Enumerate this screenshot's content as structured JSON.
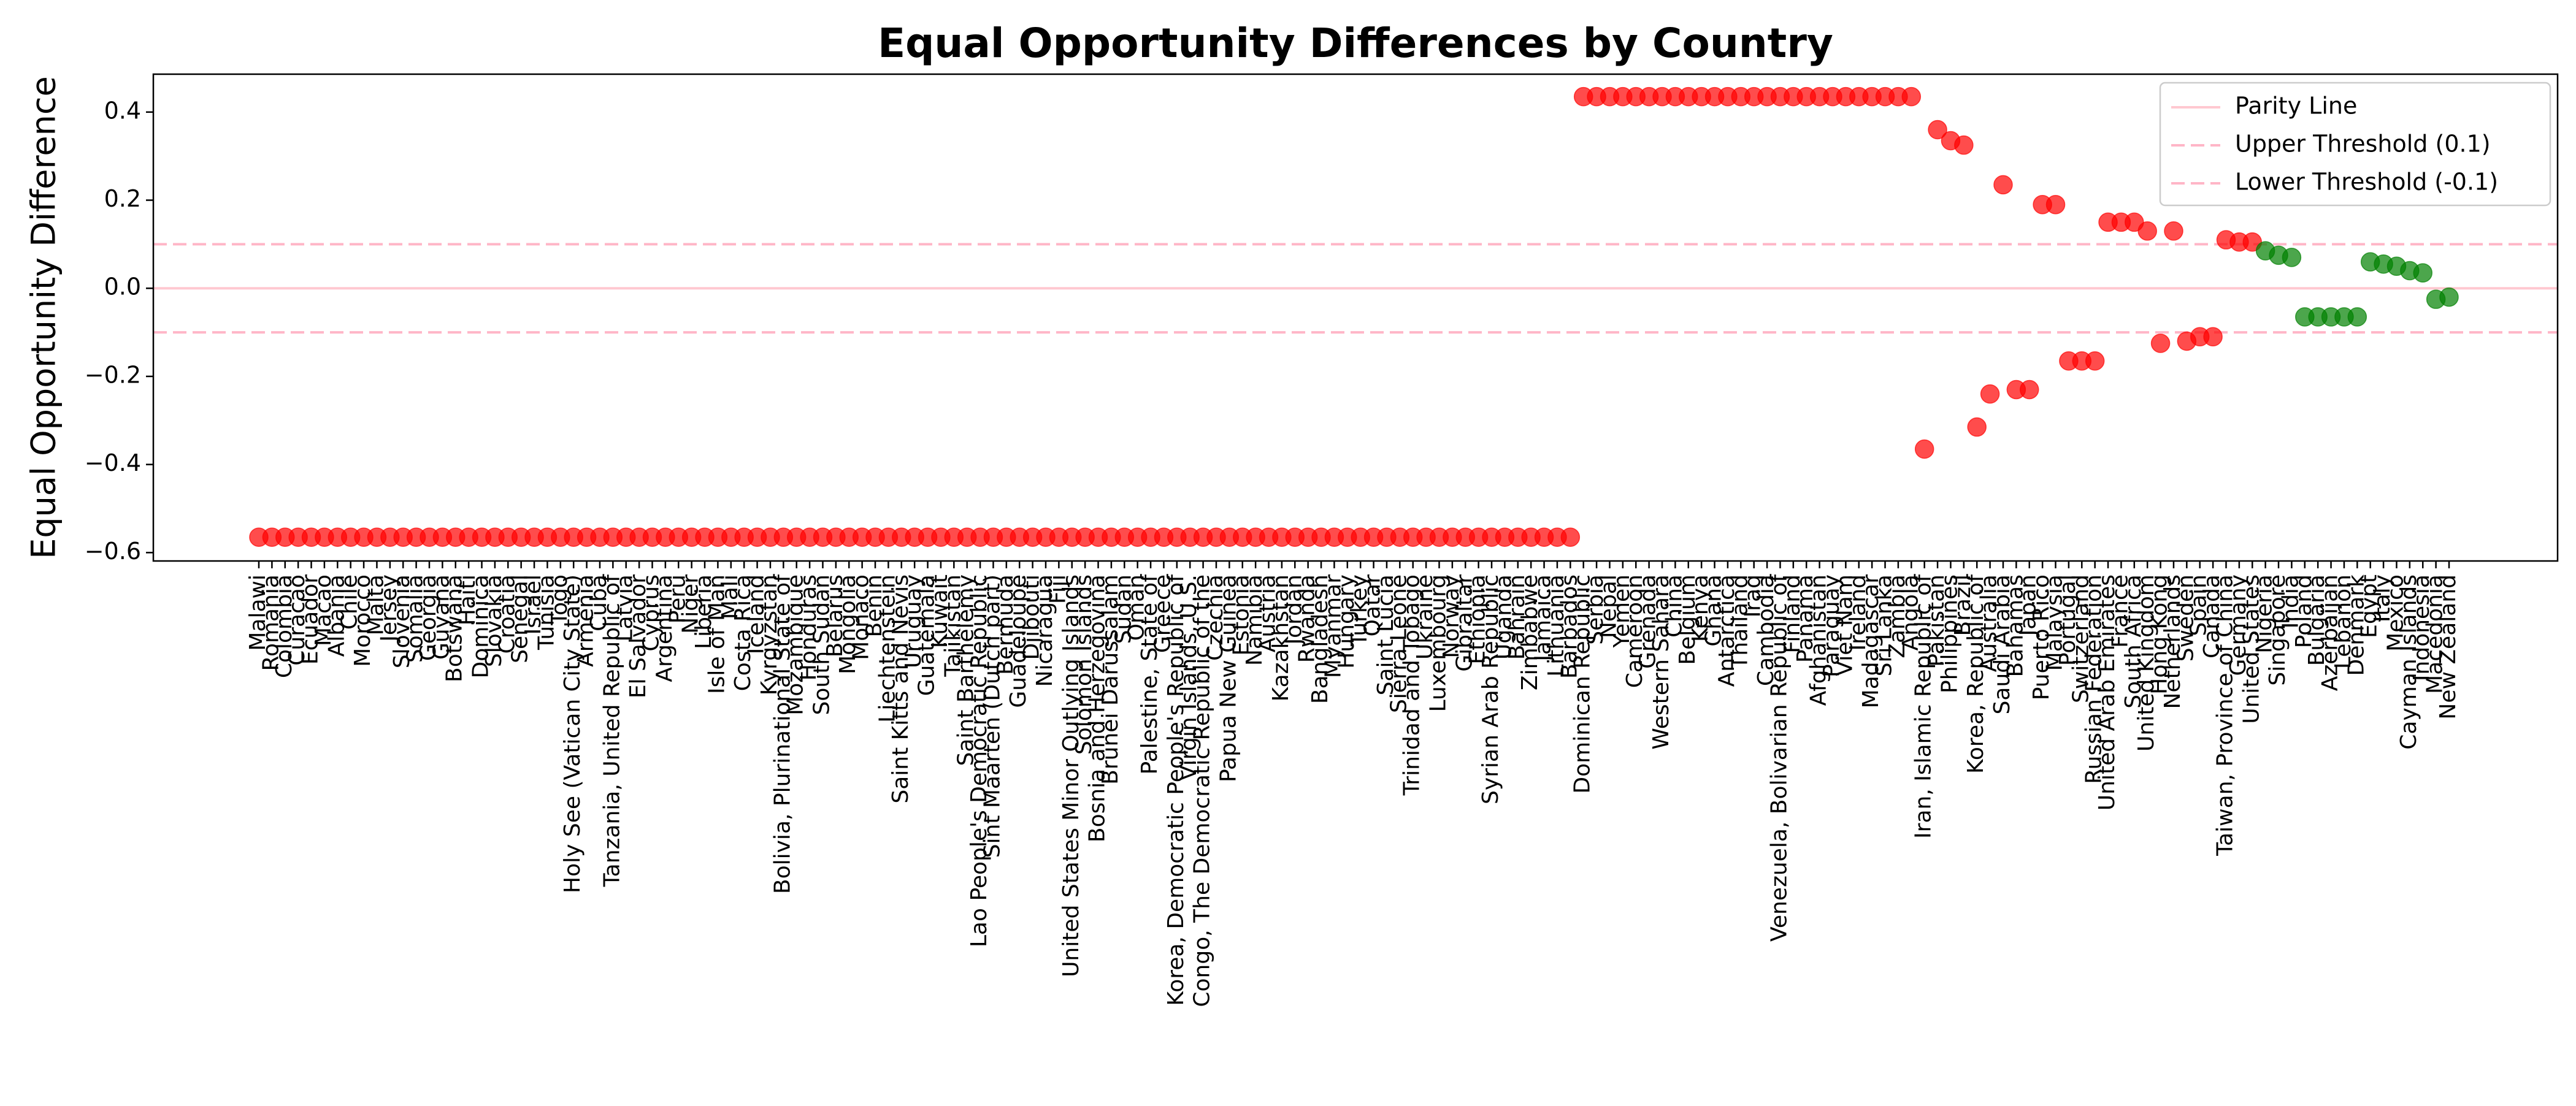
{
  "chart_data": {
    "type": "scatter",
    "title": "Equal Opportunity Differences by Country",
    "y_label": "Equal Opportunity Difference",
    "categories": [
      "Malawi",
      "Romania",
      "Colombia",
      "Curacao",
      "Ecuador",
      "Macao",
      "Albania",
      "Chile",
      "Morocco",
      "Malta",
      "Jersey",
      "Slovenia",
      "Somalia",
      "Georgia",
      "Guyana",
      "Botswana",
      "Haiti",
      "Dominica",
      "Slovakia",
      "Croatia",
      "Senegal",
      "Israel",
      "Tunisia",
      "Togo",
      "Holy See (Vatican City State)",
      "Armenia",
      "Cuba",
      "Tanzania, United Republic of",
      "Latvia",
      "El Salvador",
      "Cyprus",
      "Argentina",
      "Peru",
      "Niger",
      "Liberia",
      "Isle of Man",
      "Mali",
      "Costa Rica",
      "Iceland",
      "Kyrgyzstan",
      "Bolivia, Plurinational State of",
      "Mozambique",
      "Honduras",
      "South Sudan",
      "Belarus",
      "Mongolia",
      "Monaco",
      "Benin",
      "Liechtenstein",
      "Saint Kitts and Nevis",
      "Uruguay",
      "Guatemala",
      "Kuwait",
      "Tajikistan",
      "Saint Barthélemy",
      "Lao People's Democratic Republic",
      "Sint Maarten (Dutch part)",
      "Bermuda",
      "Guadeloupe",
      "Djibouti",
      "Nicaragua",
      "Fiji",
      "United States Minor Outlying Islands",
      "Solomon Islands",
      "Bosnia and Herzegovina",
      "Brunei Darussalam",
      "Sudan",
      "Oman",
      "Palestine, State of",
      "Greece",
      "Korea, Democratic People's Republic of",
      "Virgin Islands, U.S.",
      "Congo, The Democratic Republic of the",
      "Czechia",
      "Papua New Guinea",
      "Estonia",
      "Namibia",
      "Austria",
      "Kazakhstan",
      "Jordan",
      "Rwanda",
      "Bangladesh",
      "Myanmar",
      "Hungary",
      "Turkey",
      "Qatar",
      "Saint Lucia",
      "Sierra Leone",
      "Trinidad and Tobago",
      "Ukraine",
      "Luxembourg",
      "Norway",
      "Gibraltar",
      "Ethiopia",
      "Syrian Arab Republic",
      "Uganda",
      "Bahrain",
      "Zimbabwe",
      "Jamaica",
      "Lithuania",
      "Barbados",
      "Dominican Republic",
      "Serbia",
      "Nepal",
      "Yemen",
      "Cameroon",
      "Grenada",
      "Western Sahara",
      "China",
      "Belgium",
      "Kenya",
      "Ghana",
      "Antarctica",
      "Thailand",
      "Iraq",
      "Cambodia",
      "Venezuela, Bolivarian Republic of",
      "Finland",
      "Panama",
      "Afghanistan",
      "Paraguay",
      "Viet Nam",
      "Ireland",
      "Madagascar",
      "Sri Lanka",
      "Zambia",
      "Angola",
      "Iran, Islamic Republic of",
      "Pakistan",
      "Philippines",
      "Brazil",
      "Korea, Republic of",
      "Australia",
      "Saudi Arabia",
      "Bahamas",
      "Japan",
      "Puerto Rico",
      "Malaysia",
      "Portugal",
      "Switzerland",
      "Russian Federation",
      "United Arab Emirates",
      "France",
      "South Africa",
      "United Kingdom",
      "Hong Kong",
      "Netherlands",
      "Sweden",
      "Spain",
      "Canada",
      "Taiwan, Province of China",
      "Germany",
      "United States",
      "Nigeria",
      "Singapore",
      "India",
      "Poland",
      "Bulgaria",
      "Azerbaijan",
      "Lebanon",
      "Denmark",
      "Egypt",
      "Italy",
      "Mexico",
      "Cayman Islands",
      "Indonesia",
      "Macedonia",
      "New Zealand"
    ],
    "values": [
      -0.565,
      -0.565,
      -0.565,
      -0.565,
      -0.565,
      -0.565,
      -0.565,
      -0.565,
      -0.565,
      -0.565,
      -0.565,
      -0.565,
      -0.565,
      -0.565,
      -0.565,
      -0.565,
      -0.565,
      -0.565,
      -0.565,
      -0.565,
      -0.565,
      -0.565,
      -0.565,
      -0.565,
      -0.565,
      -0.565,
      -0.565,
      -0.565,
      -0.565,
      -0.565,
      -0.565,
      -0.565,
      -0.565,
      -0.565,
      -0.565,
      -0.565,
      -0.565,
      -0.565,
      -0.565,
      -0.565,
      -0.565,
      -0.565,
      -0.565,
      -0.565,
      -0.565,
      -0.565,
      -0.565,
      -0.565,
      -0.565,
      -0.565,
      -0.565,
      -0.565,
      -0.565,
      -0.565,
      -0.565,
      -0.565,
      -0.565,
      -0.565,
      -0.565,
      -0.565,
      -0.565,
      -0.565,
      -0.565,
      -0.565,
      -0.565,
      -0.565,
      -0.565,
      -0.565,
      -0.565,
      -0.565,
      -0.565,
      -0.565,
      -0.565,
      -0.565,
      -0.565,
      -0.565,
      -0.565,
      -0.565,
      -0.565,
      -0.565,
      -0.565,
      -0.565,
      -0.565,
      -0.565,
      -0.565,
      -0.565,
      -0.565,
      -0.565,
      -0.565,
      -0.565,
      -0.565,
      -0.565,
      -0.565,
      -0.565,
      -0.565,
      -0.565,
      -0.565,
      -0.565,
      -0.565,
      -0.565,
      -0.565,
      0.435,
      0.435,
      0.435,
      0.435,
      0.435,
      0.435,
      0.435,
      0.435,
      0.435,
      0.435,
      0.435,
      0.435,
      0.435,
      0.435,
      0.435,
      0.435,
      0.435,
      0.435,
      0.435,
      0.435,
      0.435,
      0.435,
      0.435,
      0.435,
      0.435,
      0.435,
      -0.365,
      0.36,
      0.335,
      0.325,
      -0.315,
      -0.24,
      0.235,
      -0.23,
      -0.23,
      0.19,
      0.19,
      -0.165,
      -0.165,
      -0.165,
      0.15,
      0.15,
      0.15,
      0.13,
      -0.125,
      0.13,
      -0.12,
      -0.11,
      -0.11,
      0.11,
      0.105,
      0.105,
      0.085,
      0.075,
      0.07,
      -0.065,
      -0.065,
      -0.065,
      -0.065,
      -0.065,
      0.06,
      0.055,
      0.05,
      0.04,
      0.035,
      -0.025,
      -0.02
    ],
    "point_colors": {
      "outside": "#ff0000",
      "inside": "#008000"
    },
    "reference_lines": [
      {
        "name": "Parity Line",
        "value": 0.0,
        "color": "#ffb6c1",
        "style": "solid"
      },
      {
        "name": "Upper Threshold (0.1)",
        "value": 0.1,
        "color": "#ff9eb5",
        "style": "dashed"
      },
      {
        "name": "Lower Threshold (-0.1)",
        "value": -0.1,
        "color": "#ff9eb5",
        "style": "dashed"
      }
    ],
    "ylim": [
      -0.619,
      0.486
    ],
    "yticks": [
      {
        "value": -0.6,
        "label": "−0.6"
      },
      {
        "value": -0.4,
        "label": "−0.4"
      },
      {
        "value": -0.2,
        "label": "−0.2"
      },
      {
        "value": 0.0,
        "label": "0.0"
      },
      0.2,
      0.4
    ],
    "legend_position": "upper right"
  }
}
